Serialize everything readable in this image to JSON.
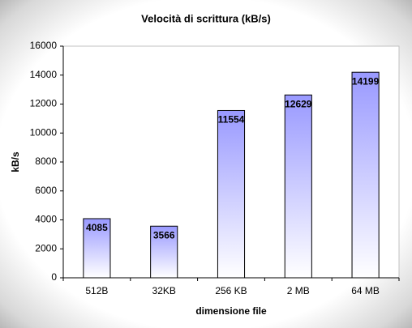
{
  "chart_data": {
    "type": "bar",
    "title": "Velocità di scrittura (kB/s)",
    "x_label": "dimensione file",
    "y_label": "kB/s",
    "categories": [
      "512B",
      "32KB",
      "256 KB",
      "2 MB",
      "64 MB"
    ],
    "values": [
      4085,
      3566,
      11554,
      12629,
      14199
    ],
    "color": "#9999ff",
    "ylim": [
      0,
      16000
    ],
    "yticks": [
      0,
      2000,
      4000,
      6000,
      8000,
      10000,
      12000,
      14000,
      16000
    ],
    "grid": false
  }
}
